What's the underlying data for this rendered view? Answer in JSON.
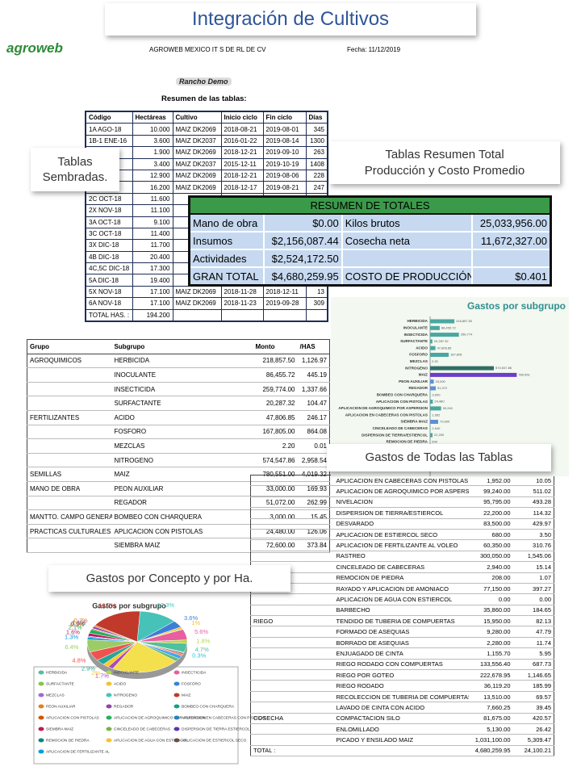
{
  "title": "Integración de Cultivos",
  "header": {
    "logo": "agroweb",
    "company": "AGROWEB MEXICO IT S DE RL DE CV",
    "date": "Fecha: 11/12/2019",
    "ranch": "Rancho Demo",
    "summary_title": "Resumen de las tablas:"
  },
  "callouts": [
    "Tablas Sembradas.",
    "Tablas Resumen Total Producción y Costo Promedio",
    "Gastos de Todas las Tablas",
    "Gastos por Concepto y por Ha."
  ],
  "fields_table": {
    "columns": [
      "Código",
      "Hectáreas",
      "Cultivo",
      "Inicio ciclo",
      "Fin ciclo",
      "Días"
    ],
    "rows": [
      [
        "1A AGO-18",
        "10.000",
        "MAIZ DK2069",
        "2018-08-21",
        "2019-08-01",
        "345"
      ],
      [
        "1B-1 ENE-16",
        "3.600",
        "MAIZ DK2037",
        "2016-01-22",
        "2019-08-14",
        "1300"
      ],
      [
        null,
        "1.900",
        "MAIZ DK2069",
        "2018-12-21",
        "2019-09-10",
        "263"
      ],
      [
        null,
        "3.400",
        "MAIZ DK2037",
        "2015-12-11",
        "2019-10-19",
        "1408"
      ],
      [
        null,
        "12.900",
        "MAIZ DK2069",
        "2018-12-21",
        "2019-08-06",
        "228"
      ],
      [
        null,
        "16.200",
        "MAIZ DK2069",
        "2018-12-17",
        "2019-08-21",
        "247"
      ],
      [
        "2C OCT-18",
        "11.600",
        null,
        null,
        null,
        null
      ],
      [
        "2X NOV-18",
        "11.100",
        null,
        null,
        null,
        null
      ],
      [
        "3A OCT-18",
        "9.100",
        null,
        null,
        null,
        null
      ],
      [
        "3C OCT-18",
        "11.400",
        null,
        null,
        null,
        null
      ],
      [
        "3X DIC-18",
        "11.700",
        null,
        null,
        null,
        null
      ],
      [
        "4B DIC-18",
        "20.400",
        null,
        null,
        null,
        null
      ],
      [
        "4C,5C DIC-18",
        "17.300",
        null,
        null,
        null,
        null
      ],
      [
        "5A DIC-18",
        "19.400",
        null,
        null,
        null,
        null
      ],
      [
        "5X NOV-18",
        "17.100",
        "MAIZ DK2069",
        "2018-11-28",
        "2018-12-11",
        "13"
      ],
      [
        "6A NOV-18",
        "17.100",
        "MAIZ DK2069",
        "2018-11-23",
        "2019-09-28",
        "309"
      ],
      [
        "TOTAL HAS. :",
        "194.200",
        null,
        null,
        null,
        null
      ]
    ]
  },
  "totals": {
    "title": "RESUMEN DE TOTALES",
    "rows": [
      [
        "Mano de obra",
        "$0.00",
        "Kilos brutos",
        "25,033,956.00"
      ],
      [
        "Insumos",
        "$2,156,087.44",
        "Cosecha neta",
        "11,672,327.00"
      ],
      [
        "Actividades",
        "$2,524,172.50",
        null,
        null
      ],
      [
        "GRAN TOTAL",
        "$4,680,259.95",
        "COSTO DE PRODUCCIÓN",
        "$0.401"
      ]
    ]
  },
  "expenses_table": {
    "columns": [
      "Grupo",
      "Subgrupo",
      "Monto",
      "/HAS"
    ],
    "rows": [
      [
        "AGROQUIMICOS",
        "HERBICIDA",
        "218,857.50",
        "1,126.97"
      ],
      [
        null,
        "INOCULANTE",
        "86,455.72",
        "445.19"
      ],
      [
        null,
        "INSECTICIDA",
        "259,774.00",
        "1,337.66"
      ],
      [
        null,
        "SURFACTANTE",
        "20,287.32",
        "104.47"
      ],
      [
        "FERTILIZANTES",
        "ACIDO",
        "47,806.85",
        "246.17"
      ],
      [
        null,
        "FOSFORO",
        "167,805.00",
        "864.08"
      ],
      [
        null,
        "MEZCLAS",
        "2.20",
        "0.01"
      ],
      [
        null,
        "NITROGENO",
        "574,547.86",
        "2,958.54"
      ],
      [
        "SEMILLAS",
        "MAIZ",
        "780,551.00",
        "4,019.32"
      ],
      [
        "MANO DE OBRA",
        "PEON AUXILIAR",
        "33,000.00",
        "169.93"
      ],
      [
        null,
        "REGADOR",
        "51,072.00",
        "262.99"
      ],
      [
        "MANTTO. CAMPO GENERAL",
        "BOMBEO CON CHARQUERA",
        "3,000.00",
        "15.45"
      ],
      [
        "PRACTICAS CULTURALES",
        "APLICACION CON PISTOLAS",
        "24,480.00",
        "126.06"
      ],
      [
        null,
        "SIEMBRA MAIZ",
        "72,600.00",
        "373.84"
      ]
    ]
  },
  "expenses_table_cont": {
    "rows": [
      [
        null,
        "APLICACION EN CABECERAS CON PISTOLAS",
        "1,952.00",
        "10.05"
      ],
      [
        null,
        "APLICACION DE AGROQUIMICO POR ASPERSION",
        "99,240.00",
        "511.02"
      ],
      [
        null,
        "NIVELACION",
        "95,795.00",
        "493.28"
      ],
      [
        null,
        "DISPERSION DE TIERRA/ESTIERCOL",
        "22,200.00",
        "114.32"
      ],
      [
        null,
        "DESVARADO",
        "83,500.00",
        "429.97"
      ],
      [
        null,
        "APLICACION DE ESTIERCOL SECO",
        "680.00",
        "3.50"
      ],
      [
        null,
        "APLICACION DE FERTILIZANTE AL VOLEO",
        "60,350.00",
        "310.76"
      ],
      [
        null,
        "RASTREO",
        "300,050.00",
        "1,545.06"
      ],
      [
        null,
        "CINCELEADO DE CABECERAS",
        "2,940.00",
        "15.14"
      ],
      [
        null,
        "REMOCION DE PIEDRA",
        "208.00",
        "1.07"
      ],
      [
        null,
        "RAYADO Y APLICACION DE AMONIACO",
        "77,150.00",
        "397.27"
      ],
      [
        null,
        "APLICACION DE AGUA CON ESTIERCOL",
        "0.00",
        "0.00"
      ],
      [
        null,
        "BARBECHO",
        "35,860.00",
        "184.65"
      ],
      [
        "RIEGO",
        "TENDIDO DE TUBERIA DE COMPUERTAS",
        "15,950.00",
        "82.13"
      ],
      [
        null,
        "FORMADO DE ASEQUIAS",
        "9,280.00",
        "47.79"
      ],
      [
        null,
        "BORRADO DE ASEQUIAS",
        "2,280.00",
        "11.74"
      ],
      [
        null,
        "ENJUAGADO DE CINTA",
        "1,155.70",
        "5.95"
      ],
      [
        null,
        "RIEGO RODADO CON COMPUERTAS",
        "133,556.40",
        "687.73"
      ],
      [
        null,
        "RIEGO POR GOTEO",
        "222,678.95",
        "1,146.65"
      ],
      [
        null,
        "RIEGO RODADO",
        "36,119.20",
        "185.99"
      ],
      [
        null,
        "RECOLECCION DE TUBERIA DE COMPUERTAS",
        "13,510.00",
        "69.57"
      ],
      [
        null,
        "LAVADO DE CINTA CON ACIDO",
        "7,660.25",
        "39.45"
      ],
      [
        "COSECHA",
        "COMPACTACION SILO",
        "81,675.00",
        "420.57"
      ],
      [
        null,
        "ENLOMILLADO",
        "5,130.00",
        "26.42"
      ],
      [
        null,
        "PICADO Y ENSILADO MAIZ",
        "1,031,100.00",
        "5,309.47"
      ],
      [
        "TOTAL :",
        null,
        "4,680,259.95",
        "24,100.21"
      ]
    ]
  },
  "chart_data": [
    {
      "type": "bar",
      "orientation": "horizontal",
      "title": "Gastos por subgrupo",
      "categories": [
        "HERBICIDA",
        "INOCULANTE",
        "INSECTICIDA",
        "SURFACTANTE",
        "ACIDO",
        "FOSFORO",
        "MEZCLAS",
        "NITROGENO",
        "MAIZ",
        "PEON AUXILIAR",
        "REGADOR",
        "BOMBEO CON CHARQUERA",
        "APLICACION CON PISTOLAS",
        "APLICACION DE AGROQUIMICO POR ASPERSION",
        "APLICACION EN CABECERAS CON PISTOLAS",
        "SIEMBRA MAIZ",
        "CINCELEADO DE CABECERAS",
        "DISPERSION DE TIERRA/ESTIERCOL",
        "REMOCION DE PIEDRA"
      ],
      "values": [
        218857.5,
        86455.72,
        259774,
        20287.32,
        47806.85,
        167805,
        2.2,
        574547.86,
        780551,
        33000,
        51072,
        3000,
        24480,
        99240,
        1952,
        72600,
        2940,
        22200,
        208
      ],
      "value_labels": [
        "218,857.50",
        "86,455.72",
        "259,774",
        "20,287.32",
        "47,806.85",
        "167,805",
        "2.20",
        "574,547.86",
        "780,551",
        "33,000",
        "51,072",
        "3,000",
        "24,480",
        "99,240",
        "1,952",
        "72,600",
        "2,940",
        "22,200",
        "208"
      ],
      "colors": [
        "#49a7a0",
        "#49a7a0",
        "#49a7a0",
        "#49a7a0",
        "#49a7a0",
        "#49a7a0",
        "#49a7a0",
        "#2f6f66",
        "#6a3fc8",
        "#5d8fd6",
        "#5d8fd6",
        "#49a7a0",
        "#49a7a0",
        "#49a7a0",
        "#49a7a0",
        "#5d8fd6",
        "#49a7a0",
        "#49a7a0",
        "#49a7a0"
      ],
      "xlim": [
        0,
        1200000
      ]
    },
    {
      "type": "pie",
      "title": "Gastos por subgrupo",
      "categories": [
        "HERBICIDA",
        "INOCULANTE",
        "INSECTICIDA",
        "SURFACTANTE",
        "ACIDO",
        "FOSFORO",
        "MEZCLAS",
        "NITROGENO",
        "MAIZ",
        "PEON AUXILIAR",
        "REGADOR",
        "BOMBEO CON CHARQUERA",
        "APLICACION CON PISTOLAS",
        "APLICACION DE AGROQUIMICO POR ASPERSION",
        "APLICACION EN CABECERAS CON PISTOLAS",
        "SIEMBRA MAIZ",
        "CINCELEADO DE CABECERAS",
        "DISPERSION DE TIERRA ESTIERCOL",
        "REMOCION DE PIEDRA",
        "APLICACION DE AGUA CON ESTIERCOL",
        "APLICACION DE ESTIERCOL SECO",
        "APLICACION DE FERTILIZANTE AL",
        null,
        null,
        null,
        null,
        null,
        null,
        null,
        null,
        null,
        null,
        null
      ],
      "values": [
        4.7,
        1.8,
        5.6,
        0.4,
        1,
        3.6,
        0,
        12.3,
        16.7,
        0.7,
        1.1,
        0.1,
        0.5,
        2.1,
        0,
        1.6,
        0.1,
        0.5,
        0,
        0,
        0,
        1.3,
        6.4,
        4.8,
        2.9,
        2,
        1.7,
        22,
        1.6,
        1.8,
        0.8,
        0.8,
        0.3
      ],
      "value_labels": [
        "4.7%",
        "1.8%",
        "5.6%",
        null,
        "1%",
        "3.6%",
        null,
        "12.3%",
        "16.7%",
        "0.7%",
        "1.1%",
        "0.1%",
        "0.5%",
        "2.1%",
        null,
        "1.6%",
        null,
        null,
        null,
        null,
        null,
        "1.3%",
        "6.4%",
        "4.8%",
        "2.9%",
        "2%",
        "1.7%",
        null,
        null,
        null,
        null,
        null,
        "0.3%"
      ],
      "colors": [
        "#4fc0a0",
        "#b8d84a",
        "#e85fa0",
        "#8bc34a",
        "#f2c12e",
        "#3c7fd8",
        "#9c6ad6",
        "#47c2b8",
        "#c0392b",
        "#e67e22",
        "#8e44ad",
        "#16a085",
        "#d35400",
        "#27ae60",
        "#2980b9",
        "#c2185b",
        "#7cb342",
        "#5e35b1",
        "#00897b",
        "#fbc02d",
        "#6d4c41",
        "#039be5",
        "#9ccc65",
        "#ef5350",
        "#26a69a",
        "#ffca28",
        "#ab47bc",
        "#f4e04d",
        "#66bb6a",
        "#42a5f5",
        "#ff7043",
        "#8d6e63",
        "#26c6da"
      ]
    }
  ]
}
